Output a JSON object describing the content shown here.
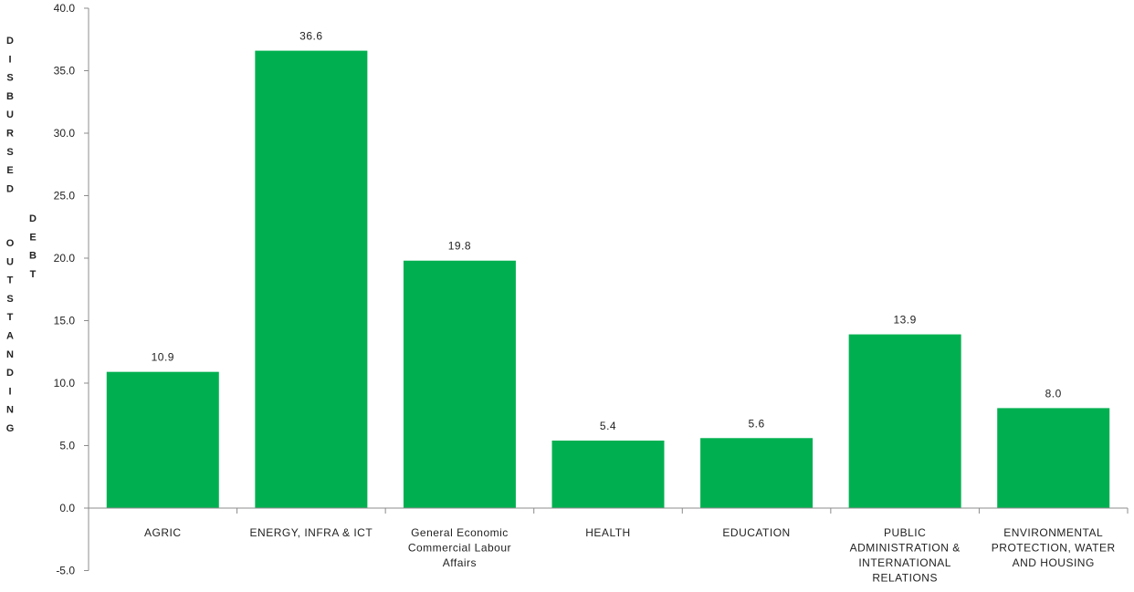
{
  "chart_data": {
    "type": "bar",
    "categories": [
      "AGRIC",
      "ENERGY, INFRA & ICT",
      "General Economic Commercial Labour Affairs",
      "HEALTH",
      "EDUCATION",
      "PUBLIC ADMINISTRATION & INTERNATIONAL RELATIONS",
      "ENVIRONMENTAL PROTECTION, WATER AND HOUSING"
    ],
    "category_lines": [
      [
        "AGRIC"
      ],
      [
        "ENERGY, INFRA & ICT"
      ],
      [
        "General Economic",
        "Commercial Labour",
        "Affairs"
      ],
      [
        "HEALTH"
      ],
      [
        "EDUCATION"
      ],
      [
        "PUBLIC",
        "ADMINISTRATION &",
        "INTERNATIONAL",
        "RELATIONS"
      ],
      [
        "ENVIRONMENTAL",
        "PROTECTION, WATER",
        "AND HOUSING"
      ]
    ],
    "values": [
      10.9,
      36.6,
      19.8,
      5.4,
      5.6,
      13.9,
      8.0
    ],
    "data_labels": [
      "10.9",
      "36.6",
      "19.8",
      "5.4",
      "5.6",
      "13.9",
      "8.0"
    ],
    "yticks": [
      "-5.0",
      "0.0",
      "5.0",
      "10.0",
      "15.0",
      "20.0",
      "25.0",
      "30.0",
      "35.0",
      "40.0"
    ],
    "ylim": [
      -5,
      40
    ],
    "title": "",
    "xlabel": "",
    "ylabel": "DISBURSED OUTSTANDING DEBT",
    "ylabel_columns": [
      [
        "D",
        "I",
        "S",
        "B",
        "U",
        "R",
        "S",
        "E",
        "D"
      ],
      [
        "O",
        "U",
        "T",
        "S",
        "T",
        "A",
        "N",
        "D",
        "I",
        "N",
        "G"
      ],
      [
        "D",
        "E",
        "B",
        "T"
      ]
    ],
    "legend": "none",
    "grid": false,
    "bar_color": "#00b050"
  }
}
